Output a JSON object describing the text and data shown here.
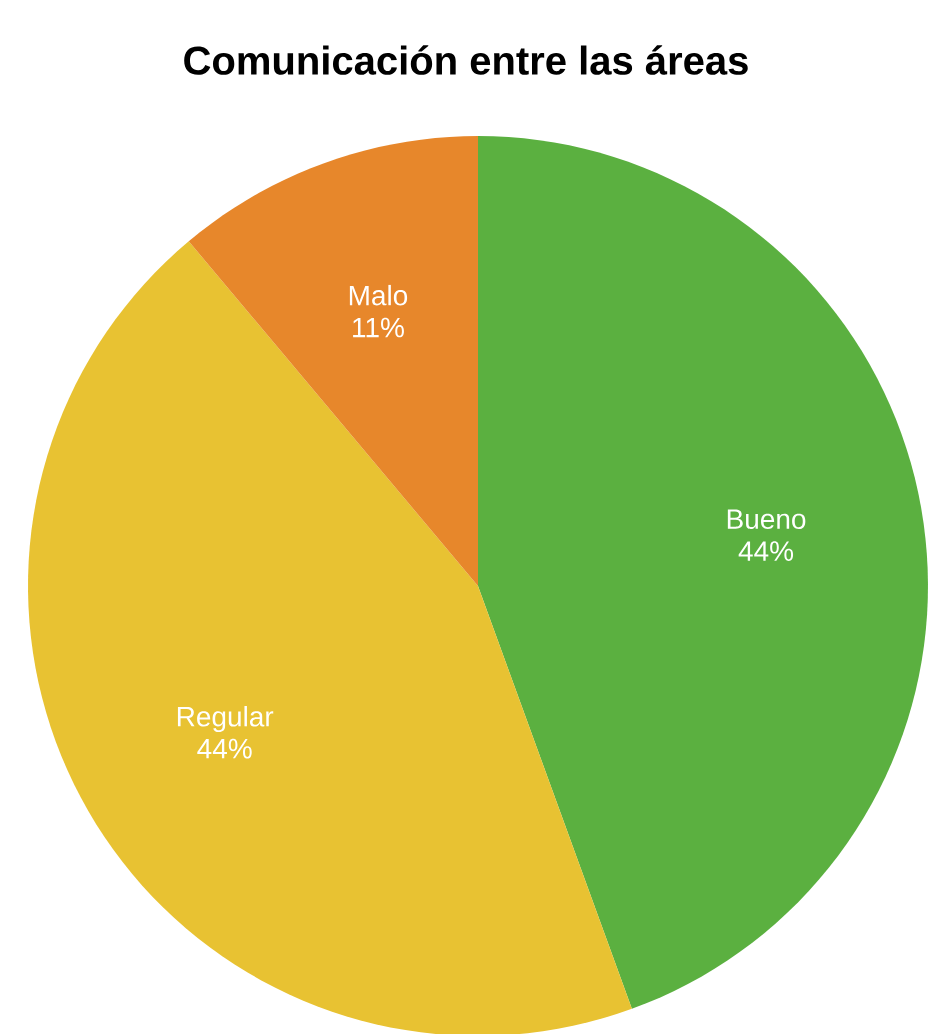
{
  "chart_data": {
    "type": "pie",
    "title": "Comunicación entre las áreas",
    "categories": [
      "Bueno",
      "Regular",
      "Malo"
    ],
    "values": [
      44,
      44,
      11
    ],
    "value_labels": [
      "44%",
      "44%",
      "11%"
    ],
    "colors": [
      "#5bb040",
      "#e8c232",
      "#e7872b"
    ]
  }
}
